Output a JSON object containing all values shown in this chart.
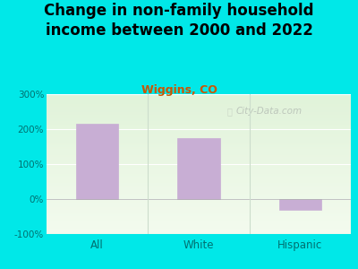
{
  "title": "Change in non-family household\nincome between 2000 and 2022",
  "subtitle": "Wiggins, CO",
  "categories": [
    "All",
    "White",
    "Hispanic"
  ],
  "values": [
    215,
    175,
    -30
  ],
  "bar_color": "#c8aed4",
  "ylim": [
    -100,
    300
  ],
  "yticks": [
    -100,
    0,
    100,
    200,
    300
  ],
  "ytick_labels": [
    "-100%",
    "0%",
    "100%",
    "200%",
    "300%"
  ],
  "title_fontsize": 12,
  "title_color": "#000000",
  "subtitle_color": "#cc5500",
  "subtitle_fontsize": 9,
  "tick_color": "#007070",
  "xtick_color": "#007070",
  "outer_bg": "#00e8e8",
  "plot_bg": "#eef8e8",
  "watermark": "City-Data.com",
  "watermark_color": "#b0b8b0",
  "grid_color": "#ffffff",
  "divider_color": "#ccddcc"
}
